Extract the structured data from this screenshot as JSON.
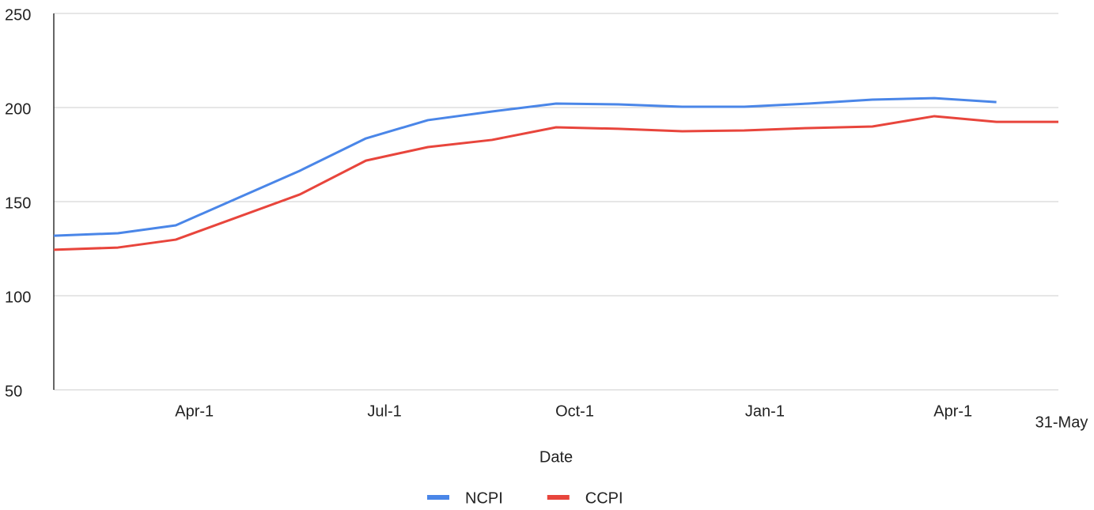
{
  "chart_data": {
    "type": "line",
    "x": [
      0,
      31,
      59,
      119,
      151,
      181,
      212,
      243,
      273,
      304,
      334,
      365,
      396,
      426,
      456,
      486
    ],
    "series": [
      {
        "name": "NCPI",
        "color": "#4a86e8",
        "values": [
          131.9,
          133.2,
          137.4,
          166.4,
          183.6,
          193.3,
          197.9,
          202.1,
          201.7,
          200.4,
          200.4,
          202.1,
          204.2,
          205,
          202.9,
          null
        ]
      },
      {
        "name": "CCPI",
        "color": "#e8453c",
        "values": [
          124.4,
          125.6,
          129.8,
          153.8,
          171.8,
          179,
          182.8,
          189.5,
          188.7,
          187.4,
          187.8,
          189.1,
          189.9,
          195.4,
          192.4,
          192.4
        ]
      }
    ],
    "xlim": [
      0,
      486
    ],
    "xticks": [
      {
        "value": 68,
        "label": "Apr-1"
      },
      {
        "value": 160,
        "label": "Jul-1"
      },
      {
        "value": 252,
        "label": "Oct-1"
      },
      {
        "value": 344,
        "label": "Jan-1"
      },
      {
        "value": 435,
        "label": "Apr-1"
      }
    ],
    "x_end_label": "31-May",
    "ylim": [
      50,
      250
    ],
    "yticks": [
      50,
      100,
      150,
      200,
      250
    ],
    "grid": true,
    "xlabel": "Date",
    "legend": "bottom"
  }
}
